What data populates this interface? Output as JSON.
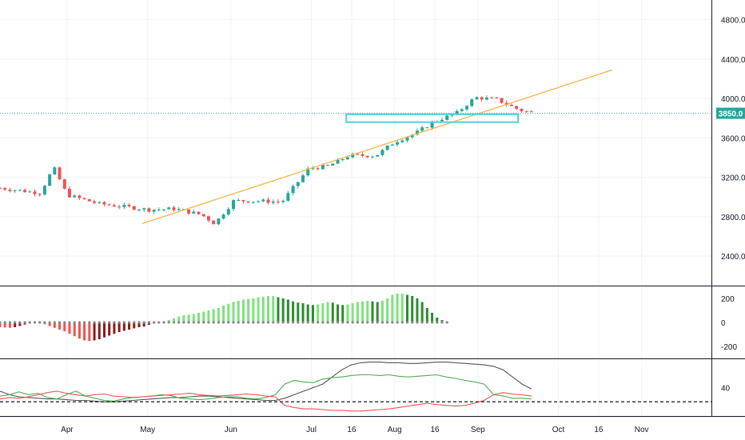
{
  "chart_data": [
    {
      "type": "candlestick",
      "panel": "price",
      "ylim": [
        2100,
        5000
      ],
      "yticks": [
        "4800.0",
        "4400.0",
        "4000.0",
        "3600.0",
        "3200.0",
        "2800.0",
        "2400.0"
      ],
      "ytick_values": [
        4800,
        4400,
        4000,
        3600,
        3200,
        2800,
        2400
      ],
      "xtick_labels": [
        "Apr",
        "May",
        "Jun",
        "Jul",
        "16",
        "Aug",
        "16",
        "Sep",
        "Oct",
        "16",
        "Nov"
      ],
      "xtick_days": [
        0,
        30,
        61,
        91,
        106,
        122,
        137,
        153,
        183,
        198,
        214
      ],
      "x_domain_days": [
        -25,
        240
      ],
      "current_price": 3850,
      "current_price_label": "3850.0",
      "trendline": {
        "from": [
          28,
          2730
        ],
        "to": [
          203,
          4290
        ]
      },
      "support_zone": {
        "x_days": [
          104,
          168
        ],
        "y_range": [
          3760,
          3840
        ]
      },
      "grid": true,
      "colors": {
        "up": "#26a69a",
        "down": "#ef5350",
        "trendline": "#f5b54a",
        "zone": "#4dd0e1",
        "price_line": "#26a69a",
        "price_label_bg": "#26a69a"
      },
      "candles": []
    },
    {
      "type": "histogram",
      "panel": "momentum",
      "ylim": [
        -300,
        300
      ],
      "yticks": [
        "200",
        "0",
        "-200"
      ],
      "ytick_values": [
        200,
        0,
        -200
      ],
      "colors": {
        "pos_up": "#7ee27e",
        "pos_down": "#2e8b2e",
        "neg_down": "#ef5350",
        "neg_up": "#8b1a1a",
        "zero_dot": "#888888"
      },
      "bars": [
        -40,
        -42,
        -45,
        -40,
        -30,
        -18,
        -5,
        5,
        0,
        -15,
        -30,
        -45,
        -60,
        -75,
        -95,
        -115,
        -135,
        -150,
        -155,
        -150,
        -140,
        -125,
        -110,
        -95,
        -80,
        -70,
        -60,
        -50,
        -40,
        -35,
        -20,
        -10,
        0,
        10,
        20,
        35,
        50,
        60,
        65,
        70,
        80,
        90,
        100,
        110,
        120,
        140,
        155,
        170,
        180,
        190,
        195,
        200,
        210,
        215,
        220,
        220,
        210,
        200,
        190,
        175,
        165,
        160,
        150,
        145,
        150,
        160,
        170,
        165,
        150,
        145,
        150,
        160,
        170,
        175,
        180,
        175,
        170,
        180,
        200,
        230,
        240,
        240,
        230,
        220,
        200,
        170,
        120,
        80,
        40,
        20,
        5
      ],
      "bar_start_day": -25,
      "bar_step_days": 1.85
    },
    {
      "type": "line",
      "panel": "oscillator",
      "ylim": [
        0,
        80
      ],
      "yticks": [
        "40"
      ],
      "ytick_values": [
        40
      ],
      "dashed_level": 20,
      "series": [
        {
          "color": "#555555",
          "values": [
            35,
            30,
            27,
            26,
            25,
            24,
            24,
            23,
            22,
            22,
            21,
            20,
            20,
            21,
            22,
            23,
            24,
            25,
            26,
            26,
            27,
            28,
            28,
            27,
            26,
            25,
            24,
            23,
            22,
            22,
            25,
            30,
            35,
            40,
            45,
            55,
            65,
            72,
            75,
            76,
            76,
            75,
            75,
            74,
            74,
            75,
            76,
            76,
            75,
            74,
            73,
            72,
            70,
            65,
            55,
            45,
            38
          ]
        },
        {
          "color": "#4caf50",
          "values": [
            28,
            30,
            34,
            30,
            32,
            26,
            24,
            30,
            35,
            28,
            25,
            22,
            21,
            24,
            26,
            27,
            28,
            30,
            29,
            25,
            24,
            23,
            24,
            26,
            27,
            27,
            25,
            24,
            26,
            30,
            45,
            50,
            48,
            47,
            52,
            54,
            55,
            57,
            58,
            58,
            57,
            58,
            56,
            55,
            56,
            57,
            58,
            55,
            53,
            50,
            48,
            45,
            30,
            28,
            25,
            25,
            24
          ]
        },
        {
          "color": "#ef5350",
          "values": [
            24,
            26,
            25,
            27,
            30,
            33,
            35,
            32,
            30,
            28,
            30,
            31,
            28,
            27,
            26,
            27,
            28,
            29,
            30,
            31,
            32,
            30,
            29,
            28,
            29,
            30,
            31,
            30,
            28,
            27,
            15,
            12,
            10,
            10,
            9,
            8,
            8,
            7,
            7,
            8,
            9,
            10,
            12,
            14,
            16,
            18,
            16,
            15,
            14,
            15,
            18,
            22,
            30,
            33,
            31,
            30,
            28
          ]
        }
      ]
    }
  ]
}
